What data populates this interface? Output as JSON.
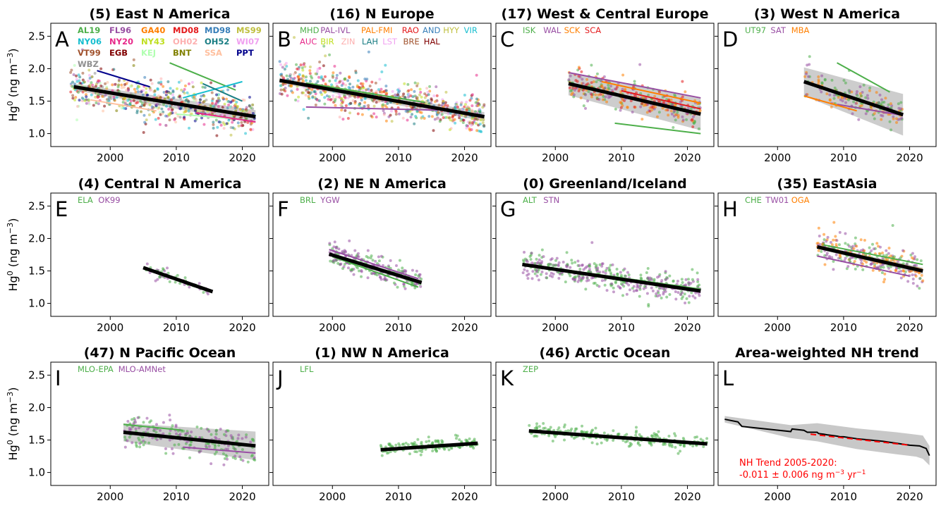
{
  "chart_data": [
    {
      "letter": "A",
      "title": "(5) East N America",
      "type": "scatter",
      "xlim": [
        1991,
        2024
      ],
      "ylim": [
        0.8,
        2.7
      ],
      "xticks": [
        "2000",
        "2010",
        "2020"
      ],
      "yticks": [
        "1.0",
        "1.5",
        "2.0",
        "2.5"
      ],
      "ylabel": "Hg0",
      "legend": [
        {
          "name": "AL19",
          "color": "#4daf4a"
        },
        {
          "name": "FL96",
          "color": "#984ea3"
        },
        {
          "name": "GA40",
          "color": "#ff7f00"
        },
        {
          "name": "MD08",
          "color": "#e41a1c"
        },
        {
          "name": "MD98",
          "color": "#377eb8"
        },
        {
          "name": "MS99",
          "color": "#bfbf3f"
        },
        {
          "name": "NY06",
          "color": "#17becf"
        },
        {
          "name": "NY20",
          "color": "#e7298a"
        },
        {
          "name": "NY43",
          "color": "#bfdf1f"
        },
        {
          "name": "OH02",
          "color": "#fdb0b0"
        },
        {
          "name": "OH52",
          "color": "#1b7e84"
        },
        {
          "name": "WI07",
          "color": "#f0a0f0"
        },
        {
          "name": "VT99",
          "color": "#a0522d"
        },
        {
          "name": "EGB",
          "color": "#800000"
        },
        {
          "name": "KEJ",
          "color": "#b0ffb0"
        },
        {
          "name": "BNT",
          "color": "#808000"
        },
        {
          "name": "SSA",
          "color": "#ffc09f"
        },
        {
          "name": "PPT",
          "color": "#00008b"
        },
        {
          "name": "WBZ",
          "color": "#909090"
        }
      ],
      "trend": {
        "x": [
          1994.5,
          2022
        ],
        "y": [
          1.72,
          1.26
        ],
        "band": [
          0.05,
          0.1
        ]
      },
      "station_lines": [
        {
          "color": "#00008b",
          "x": [
            1998,
            2006
          ],
          "y": [
            1.97,
            1.72
          ]
        },
        {
          "color": "#4daf4a",
          "x": [
            2009,
            2019
          ],
          "y": [
            2.09,
            1.67
          ]
        },
        {
          "color": "#17becf",
          "x": [
            2011,
            2020
          ],
          "y": [
            1.55,
            1.8
          ]
        },
        {
          "color": "#1b7e84",
          "x": [
            2014,
            2020
          ],
          "y": [
            1.77,
            1.5
          ]
        },
        {
          "color": "#ffc09f",
          "x": [
            1997,
            2007
          ],
          "y": [
            1.52,
            1.35
          ]
        },
        {
          "color": "#b0ffb0",
          "x": [
            2010,
            2020
          ],
          "y": [
            1.3,
            1.22
          ]
        },
        {
          "color": "#e7298a",
          "x": [
            2013,
            2022
          ],
          "y": [
            1.32,
            1.18
          ]
        }
      ],
      "points": {
        "x_range": [
          1994,
          2022
        ],
        "y_spread": 0.28,
        "count": 620,
        "trend_y": [
          1.72,
          1.26
        ]
      }
    },
    {
      "letter": "B",
      "title": "(16) N Europe",
      "type": "scatter",
      "xlim": [
        1991,
        2024
      ],
      "ylim": [
        0.8,
        2.7
      ],
      "xticks": [
        "2000",
        "2010",
        "2020"
      ],
      "yticks": [],
      "legend": [
        {
          "name": "MHD",
          "color": "#4daf4a"
        },
        {
          "name": "PAL-IVL",
          "color": "#984ea3"
        },
        {
          "name": "PAL-FMI",
          "color": "#ff7f00"
        },
        {
          "name": "RAO",
          "color": "#e41a1c"
        },
        {
          "name": "AND",
          "color": "#377eb8"
        },
        {
          "name": "HYY",
          "color": "#bfbf3f"
        },
        {
          "name": "VIR",
          "color": "#17becf"
        },
        {
          "name": "AUC",
          "color": "#e7298a"
        },
        {
          "name": "BIR",
          "color": "#bfdf1f"
        },
        {
          "name": "ZIN",
          "color": "#fdb0b0"
        },
        {
          "name": "LAH",
          "color": "#1b7e84"
        },
        {
          "name": "LST",
          "color": "#f0a0f0"
        },
        {
          "name": "BRE",
          "color": "#a0522d"
        },
        {
          "name": "HAL",
          "color": "#800000"
        }
      ],
      "trend": {
        "x": [
          1992,
          2023
        ],
        "y": [
          1.82,
          1.26
        ],
        "band": [
          0.04,
          0.07
        ]
      },
      "station_lines": [
        {
          "color": "#984ea3",
          "x": [
            1996,
            2016
          ],
          "y": [
            1.41,
            1.36
          ]
        },
        {
          "color": "#4daf4a",
          "x": [
            1996,
            2014
          ],
          "y": [
            1.78,
            1.48
          ]
        }
      ],
      "points": {
        "x_range": [
          1992,
          2023
        ],
        "y_spread": 0.26,
        "count": 720,
        "trend_y": [
          1.82,
          1.26
        ]
      }
    },
    {
      "letter": "C",
      "title": "(17) West & Central Europe",
      "type": "scatter",
      "xlim": [
        1991,
        2024
      ],
      "ylim": [
        0.8,
        2.7
      ],
      "xticks": [
        "2000",
        "2010",
        "2020"
      ],
      "yticks": [],
      "legend": [
        {
          "name": "ISK",
          "color": "#4daf4a"
        },
        {
          "name": "WAL",
          "color": "#984ea3"
        },
        {
          "name": "SCK",
          "color": "#ff7f00"
        },
        {
          "name": "SCA",
          "color": "#e41a1c"
        }
      ],
      "trend": {
        "x": [
          2002,
          2022
        ],
        "y": [
          1.77,
          1.3
        ],
        "band": [
          0.18,
          0.25
        ]
      },
      "station_lines": [
        {
          "color": "#984ea3",
          "x": [
            2002,
            2022
          ],
          "y": [
            1.94,
            1.55
          ]
        },
        {
          "color": "#4daf4a",
          "x": [
            2009,
            2022
          ],
          "y": [
            1.16,
            1.0
          ]
        },
        {
          "color": "#ff7f00",
          "x": [
            2007,
            2022
          ],
          "y": [
            1.8,
            1.47
          ]
        },
        {
          "color": "#e41a1c",
          "x": [
            2010,
            2022
          ],
          "y": [
            1.66,
            1.38
          ]
        }
      ],
      "points": {
        "x_range": [
          2002,
          2022
        ],
        "y_spread": 0.2,
        "count": 340,
        "trend_y": [
          1.77,
          1.3
        ]
      }
    },
    {
      "letter": "D",
      "title": "(3) West N America",
      "type": "scatter",
      "xlim": [
        1991,
        2024
      ],
      "ylim": [
        0.8,
        2.7
      ],
      "xticks": [
        "2000",
        "2010",
        "2020"
      ],
      "yticks": [],
      "legend": [
        {
          "name": "UT97",
          "color": "#4daf4a"
        },
        {
          "name": "SAT",
          "color": "#984ea3"
        },
        {
          "name": "MBA",
          "color": "#ff7f00"
        }
      ],
      "trend": {
        "x": [
          2004,
          2019
        ],
        "y": [
          1.8,
          1.29
        ],
        "band": [
          0.22,
          0.32
        ]
      },
      "station_lines": [
        {
          "color": "#4daf4a",
          "x": [
            2009,
            2017
          ],
          "y": [
            2.09,
            1.64
          ]
        },
        {
          "color": "#984ea3",
          "x": [
            2009,
            2019
          ],
          "y": [
            1.45,
            1.28
          ]
        },
        {
          "color": "#ff7f00",
          "x": [
            2004,
            2012
          ],
          "y": [
            1.58,
            1.35
          ]
        }
      ],
      "points": {
        "x_range": [
          2004,
          2019
        ],
        "y_spread": 0.22,
        "count": 180,
        "trend_y": [
          1.8,
          1.29
        ]
      }
    },
    {
      "letter": "E",
      "title": "(4) Central N America",
      "type": "scatter",
      "xlim": [
        1991,
        2024
      ],
      "ylim": [
        0.8,
        2.7
      ],
      "xticks": [
        "2000",
        "2010",
        "2020"
      ],
      "yticks": [
        "1.0",
        "1.5",
        "2.0",
        "2.5"
      ],
      "ylabel": "Hg0",
      "legend": [
        {
          "name": "ELA",
          "color": "#4daf4a"
        },
        {
          "name": "OK99",
          "color": "#984ea3"
        }
      ],
      "trend": {
        "x": [
          2005,
          2015.5
        ],
        "y": [
          1.55,
          1.18
        ],
        "band": [
          0.02,
          0.03
        ]
      },
      "station_lines": [],
      "points": {
        "x_range": [
          2005,
          2015
        ],
        "y_spread": 0.08,
        "count": 60,
        "trend_y": [
          1.55,
          1.18
        ]
      }
    },
    {
      "letter": "F",
      "title": "(2) NE N America",
      "type": "scatter",
      "xlim": [
        1991,
        2024
      ],
      "ylim": [
        0.8,
        2.7
      ],
      "xticks": [
        "2000",
        "2010",
        "2020"
      ],
      "yticks": [],
      "legend": [
        {
          "name": "BRL",
          "color": "#4daf4a"
        },
        {
          "name": "YGW",
          "color": "#984ea3"
        }
      ],
      "trend": {
        "x": [
          1999.5,
          2013.5
        ],
        "y": [
          1.76,
          1.32
        ],
        "band": [
          0.03,
          0.04
        ]
      },
      "station_lines": [
        {
          "color": "#984ea3",
          "x": [
            1999.5,
            2013
          ],
          "y": [
            1.83,
            1.38
          ]
        },
        {
          "color": "#4daf4a",
          "x": [
            2000,
            2013
          ],
          "y": [
            1.72,
            1.25
          ]
        }
      ],
      "points": {
        "x_range": [
          1999.5,
          2013.5
        ],
        "y_spread": 0.16,
        "count": 240,
        "trend_y": [
          1.76,
          1.32
        ]
      }
    },
    {
      "letter": "G",
      "title": "(0) Greenland/Iceland",
      "type": "scatter",
      "xlim": [
        1991,
        2024
      ],
      "ylim": [
        0.8,
        2.7
      ],
      "xticks": [
        "2000",
        "2010",
        "2020"
      ],
      "yticks": [],
      "legend": [
        {
          "name": "ALT",
          "color": "#4daf4a"
        },
        {
          "name": "STN",
          "color": "#984ea3"
        }
      ],
      "trend": {
        "x": [
          1995,
          2022
        ],
        "y": [
          1.6,
          1.19
        ],
        "band": [
          0.02,
          0.03
        ]
      },
      "station_lines": [
        {
          "color": "#4daf4a",
          "x": [
            1995,
            2022
          ],
          "y": [
            1.61,
            1.22
          ]
        },
        {
          "color": "#984ea3",
          "x": [
            2002,
            2022
          ],
          "y": [
            1.49,
            1.17
          ]
        }
      ],
      "points": {
        "x_range": [
          1995,
          2022
        ],
        "y_spread": 0.18,
        "count": 420,
        "trend_y": [
          1.6,
          1.19
        ]
      }
    },
    {
      "letter": "H",
      "title": "(35) EastAsia",
      "type": "scatter",
      "xlim": [
        1991,
        2024
      ],
      "ylim": [
        0.8,
        2.7
      ],
      "xticks": [
        "2000",
        "2010",
        "2020"
      ],
      "yticks": [],
      "legend": [
        {
          "name": "CHE",
          "color": "#4daf4a"
        },
        {
          "name": "TW01",
          "color": "#984ea3"
        },
        {
          "name": "OGA",
          "color": "#ff7f00"
        }
      ],
      "trend": {
        "x": [
          2006,
          2022
        ],
        "y": [
          1.87,
          1.5
        ],
        "band": [
          0.03,
          0.05
        ]
      },
      "station_lines": [
        {
          "color": "#4daf4a",
          "x": [
            2007,
            2022
          ],
          "y": [
            1.9,
            1.6
          ]
        },
        {
          "color": "#984ea3",
          "x": [
            2006,
            2020
          ],
          "y": [
            1.73,
            1.42
          ]
        },
        {
          "color": "#ff7f00",
          "x": [
            2014,
            2022
          ],
          "y": [
            1.7,
            1.52
          ]
        }
      ],
      "points": {
        "x_range": [
          2006,
          2022
        ],
        "y_spread": 0.2,
        "count": 300,
        "trend_y": [
          1.87,
          1.5
        ]
      }
    },
    {
      "letter": "I",
      "title": "(47) N Pacific Ocean",
      "type": "scatter",
      "xlim": [
        1991,
        2024
      ],
      "ylim": [
        0.8,
        2.7
      ],
      "xticks": [
        "2000",
        "2010",
        "2020"
      ],
      "yticks": [
        "1.0",
        "1.5",
        "2.0",
        "2.5"
      ],
      "ylabel": "Hg0",
      "legend": [
        {
          "name": "MLO-EPA",
          "color": "#4daf4a"
        },
        {
          "name": "MLO-AMNet",
          "color": "#984ea3"
        }
      ],
      "trend": {
        "x": [
          2002,
          2022
        ],
        "y": [
          1.62,
          1.41
        ],
        "band": [
          0.14,
          0.22
        ]
      },
      "station_lines": [
        {
          "color": "#4daf4a",
          "x": [
            2002,
            2011
          ],
          "y": [
            1.74,
            1.65
          ]
        },
        {
          "color": "#984ea3",
          "x": [
            2011,
            2022
          ],
          "y": [
            1.39,
            1.3
          ]
        }
      ],
      "points": {
        "x_range": [
          2002,
          2022
        ],
        "y_spread": 0.24,
        "count": 230,
        "trend_y": [
          1.62,
          1.41
        ]
      }
    },
    {
      "letter": "J",
      "title": "(1) NW N America",
      "type": "scatter",
      "xlim": [
        1991,
        2024
      ],
      "ylim": [
        0.8,
        2.7
      ],
      "xticks": [
        "2000",
        "2010",
        "2020"
      ],
      "yticks": [],
      "legend": [
        {
          "name": "LFL",
          "color": "#4daf4a"
        }
      ],
      "trend": {
        "x": [
          2007.3,
          2022
        ],
        "y": [
          1.35,
          1.45
        ],
        "band": [
          0.02,
          0.02
        ]
      },
      "station_lines": [],
      "points": {
        "x_range": [
          2007.3,
          2022
        ],
        "y_spread": 0.08,
        "count": 150,
        "trend_y": [
          1.35,
          1.45
        ]
      }
    },
    {
      "letter": "K",
      "title": "(46) Arctic Ocean",
      "type": "scatter",
      "xlim": [
        1991,
        2024
      ],
      "ylim": [
        0.8,
        2.7
      ],
      "xticks": [
        "2000",
        "2010",
        "2020"
      ],
      "yticks": [],
      "legend": [
        {
          "name": "ZEP",
          "color": "#4daf4a"
        }
      ],
      "trend": {
        "x": [
          1996,
          2023
        ],
        "y": [
          1.64,
          1.44
        ],
        "band": [
          0.02,
          0.02
        ]
      },
      "station_lines": [],
      "points": {
        "x_range": [
          1996,
          2023
        ],
        "y_spread": 0.1,
        "count": 220,
        "trend_y": [
          1.64,
          1.44
        ]
      }
    },
    {
      "letter": "L",
      "title": "Area-weighted NH trend",
      "type": "line",
      "xlim": [
        1991,
        2024
      ],
      "ylim": [
        0.8,
        2.7
      ],
      "xticks": [
        "2000",
        "2010",
        "2020"
      ],
      "yticks": [],
      "line": {
        "x": [
          1992,
          1994,
          1994.6,
          2002,
          2002.2,
          2004,
          2004.5,
          2006,
          2006.2,
          2007,
          2007.5,
          2009,
          2009.5,
          2010,
          2012,
          2014,
          2016,
          2018,
          2020,
          2021.5,
          2022,
          2022.5,
          2023
        ],
        "y": [
          1.82,
          1.78,
          1.71,
          1.63,
          1.67,
          1.65,
          1.62,
          1.62,
          1.6,
          1.59,
          1.58,
          1.56,
          1.55,
          1.55,
          1.52,
          1.5,
          1.48,
          1.45,
          1.42,
          1.41,
          1.39,
          1.37,
          1.26
        ],
        "band_x": [
          1992,
          2002,
          2006,
          2012,
          2018,
          2021,
          2022,
          2023
        ],
        "band_half": [
          0.05,
          0.1,
          0.14,
          0.16,
          0.17,
          0.17,
          0.18,
          0.15
        ]
      },
      "nh_trend": {
        "x": [
          2005,
          2020
        ],
        "y": [
          1.59,
          1.42
        ]
      },
      "annotation_line1": "NH Trend 2005-2020:",
      "annotation_line2": "-0.011 ± 0.006 ng m",
      "annotation_sup1": "−3",
      "annotation_mid": " yr",
      "annotation_sup2": "−1"
    }
  ],
  "ylabel_text": "Hg",
  "ylabel_sup": "0",
  "ylabel_unit": " (ng m",
  "ylabel_unit_sup": "−3",
  "ylabel_close": ")"
}
